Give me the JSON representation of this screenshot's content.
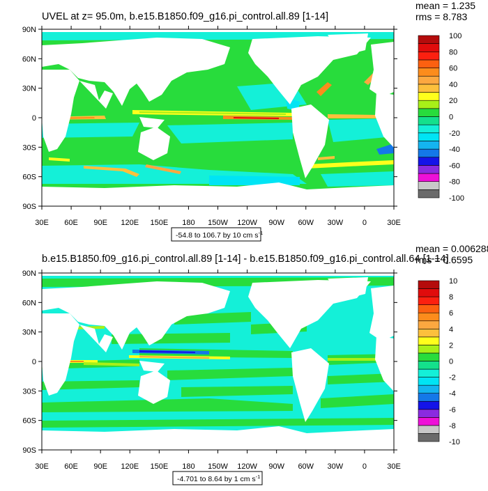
{
  "panels": [
    {
      "title": "UVEL at z=  95.0m, b.e15.B1850.f09_g16.pi_control.all.89 [1-14]",
      "mean_text": "mean = 1.235",
      "rms_text": "rms = 8.783",
      "range_text": "-54.8 to 106.7 by 10 cm s",
      "range_sup": "-1",
      "colorbar_labels": [
        "100",
        "80",
        "60",
        "40",
        "20",
        "0",
        "-20",
        "-40",
        "-60",
        "-80",
        "-100"
      ]
    },
    {
      "title": "b.e15.B1850.f09_g16.pi_control.all.89 [1-14] - b.e15.B1850.f09_g16.pi_control.all.64 [1-14]",
      "mean_text": "mean = 0.006288",
      "rms_text": "rms = 0.6595",
      "range_text": "-4.701 to 8.64 by 1 cm s",
      "range_sup": "-1",
      "colorbar_labels": [
        "10",
        "8",
        "6",
        "4",
        "2",
        "0",
        "-2",
        "-4",
        "-6",
        "-8",
        "-10"
      ]
    }
  ],
  "axes": {
    "lat_labels": [
      "90N",
      "60N",
      "30N",
      "0",
      "30S",
      "60S",
      "90S"
    ],
    "lon_labels": [
      "30E",
      "60E",
      "90E",
      "120E",
      "150E",
      "180",
      "150W",
      "120W",
      "90W",
      "60W",
      "30W",
      "0",
      "30E"
    ]
  },
  "colors": {
    "colorbar": [
      "#6b6b6b",
      "#c8c8c8",
      "#ee10d8",
      "#8a2be0",
      "#1414e8",
      "#1478e8",
      "#14b4f0",
      "#00e4f4",
      "#14f0d8",
      "#14e08c",
      "#28dc3c",
      "#a8f018",
      "#ffff1c",
      "#fcc03c",
      "#fca840",
      "#fc8c1c",
      "#fc6010",
      "#fc2010",
      "#e00c0c",
      "#b40c0c"
    ],
    "ocean_mid": "#28dc3c",
    "ocean_cyan": "#14f0d8",
    "land": "#ffffff"
  }
}
